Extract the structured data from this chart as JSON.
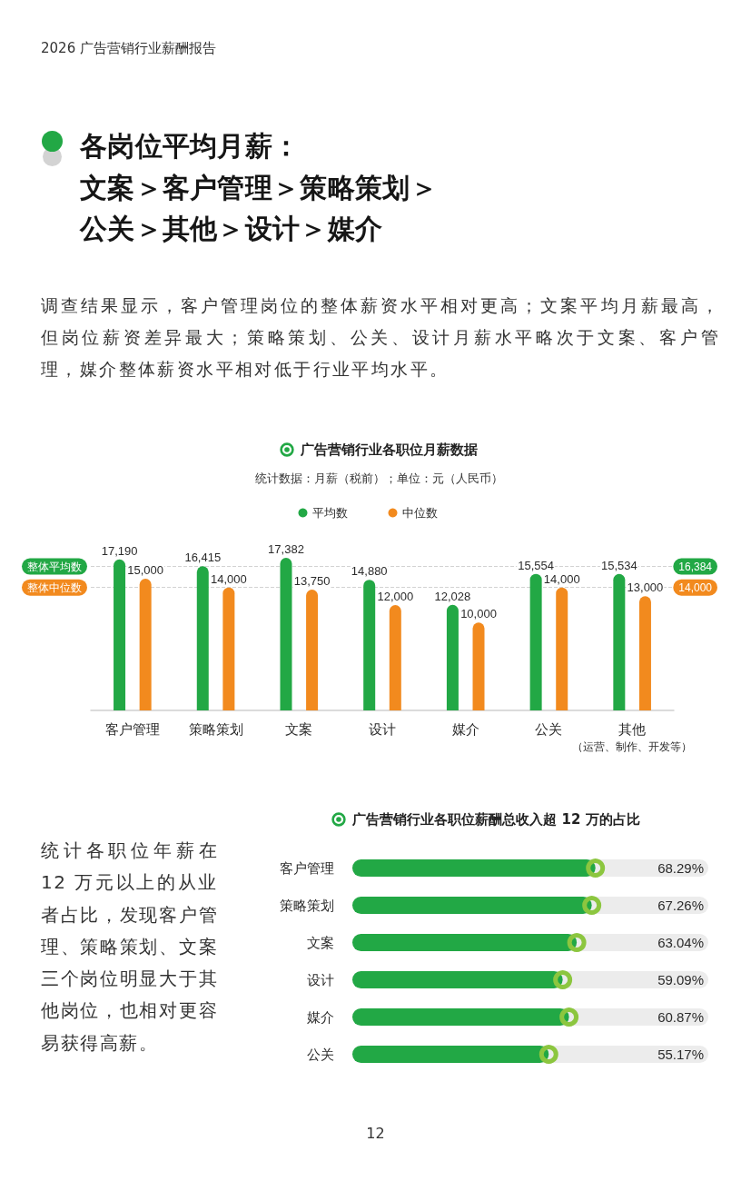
{
  "chart_data": [
    {
      "type": "bar",
      "title": "广告营销行业各职位月薪数据",
      "subtitle": "统计数据：月薪（税前）；单位：元（人民币）",
      "categories": [
        "客户管理",
        "策略策划",
        "文案",
        "设计",
        "媒介",
        "公关",
        "其他（运营、制作、开发等）"
      ],
      "series": [
        {
          "name": "平均数",
          "color": "#22a845",
          "values": [
            17190,
            16415,
            17382,
            14880,
            12028,
            15554,
            15534
          ],
          "value_labels": [
            "17,190",
            "16,415",
            "17,382",
            "14,880",
            "12,028",
            "15,554",
            "15,534"
          ]
        },
        {
          "name": "中位数",
          "color": "#f28a1e",
          "values": [
            15000,
            14000,
            13750,
            12000,
            10000,
            14000,
            13000
          ],
          "value_labels": [
            "15,000",
            "14,000",
            "13,750",
            "12,000",
            "10,000",
            "14,000",
            "13,000"
          ]
        }
      ],
      "ref_lines": [
        {
          "axis": "y",
          "value": 16384,
          "label": "整体平均数",
          "line_style": "dashed"
        },
        {
          "axis": "y",
          "value": 14000,
          "label": "整体中位数",
          "line_style": "dashed"
        }
      ],
      "legend": "top",
      "tick_labels": "x",
      "annotations": [
        "2026 广告营销行业薪酬报告",
        "各岗位平均月薪：文案＞客户管理＞策略策划＞公关＞其他＞设计＞媒介",
        "调查结果显示，客户管理岗位的整体薪资水平相对更高；文案平均月薪最高，但岗位薪资差异最大；策略策划、公关、设计月薪水平略次于文案、客户管理，媒介整体薪资水平相对低于行业平均水平。",
        "16,384",
        "14,000"
      ]
    },
    {
      "type": "bar",
      "orientation": "horizontal",
      "title": "广告营销行业各职位薪酬总收入超 12 万的占比",
      "categories": [
        "客户管理",
        "策略策划",
        "文案",
        "设计",
        "媒介",
        "公关"
      ],
      "series": [
        {
          "color": "#22a845",
          "values": [
            68.29,
            67.26,
            63.04,
            59.09,
            60.87,
            55.17
          ],
          "value_labels": [
            "68.29%",
            "67.26%",
            "63.04%",
            "59.09%",
            "60.87%",
            "55.17%"
          ]
        },
        {
          "type": "scatter",
          "color": "#8cc63f",
          "values": [
            68.29,
            67.26,
            63.04,
            59.09,
            60.87,
            55.17
          ]
        }
      ],
      "xlim": [
        0,
        100
      ],
      "marker": "circle",
      "tick_labels": "y",
      "annotations": [
        "统计各职位年薪在12 万元以上的从业者占比，发现客户管理、策略策划、文案三个岗位明显大于其他岗位，也相对更容易获得高薪。",
        "12"
      ]
    }
  ]
}
